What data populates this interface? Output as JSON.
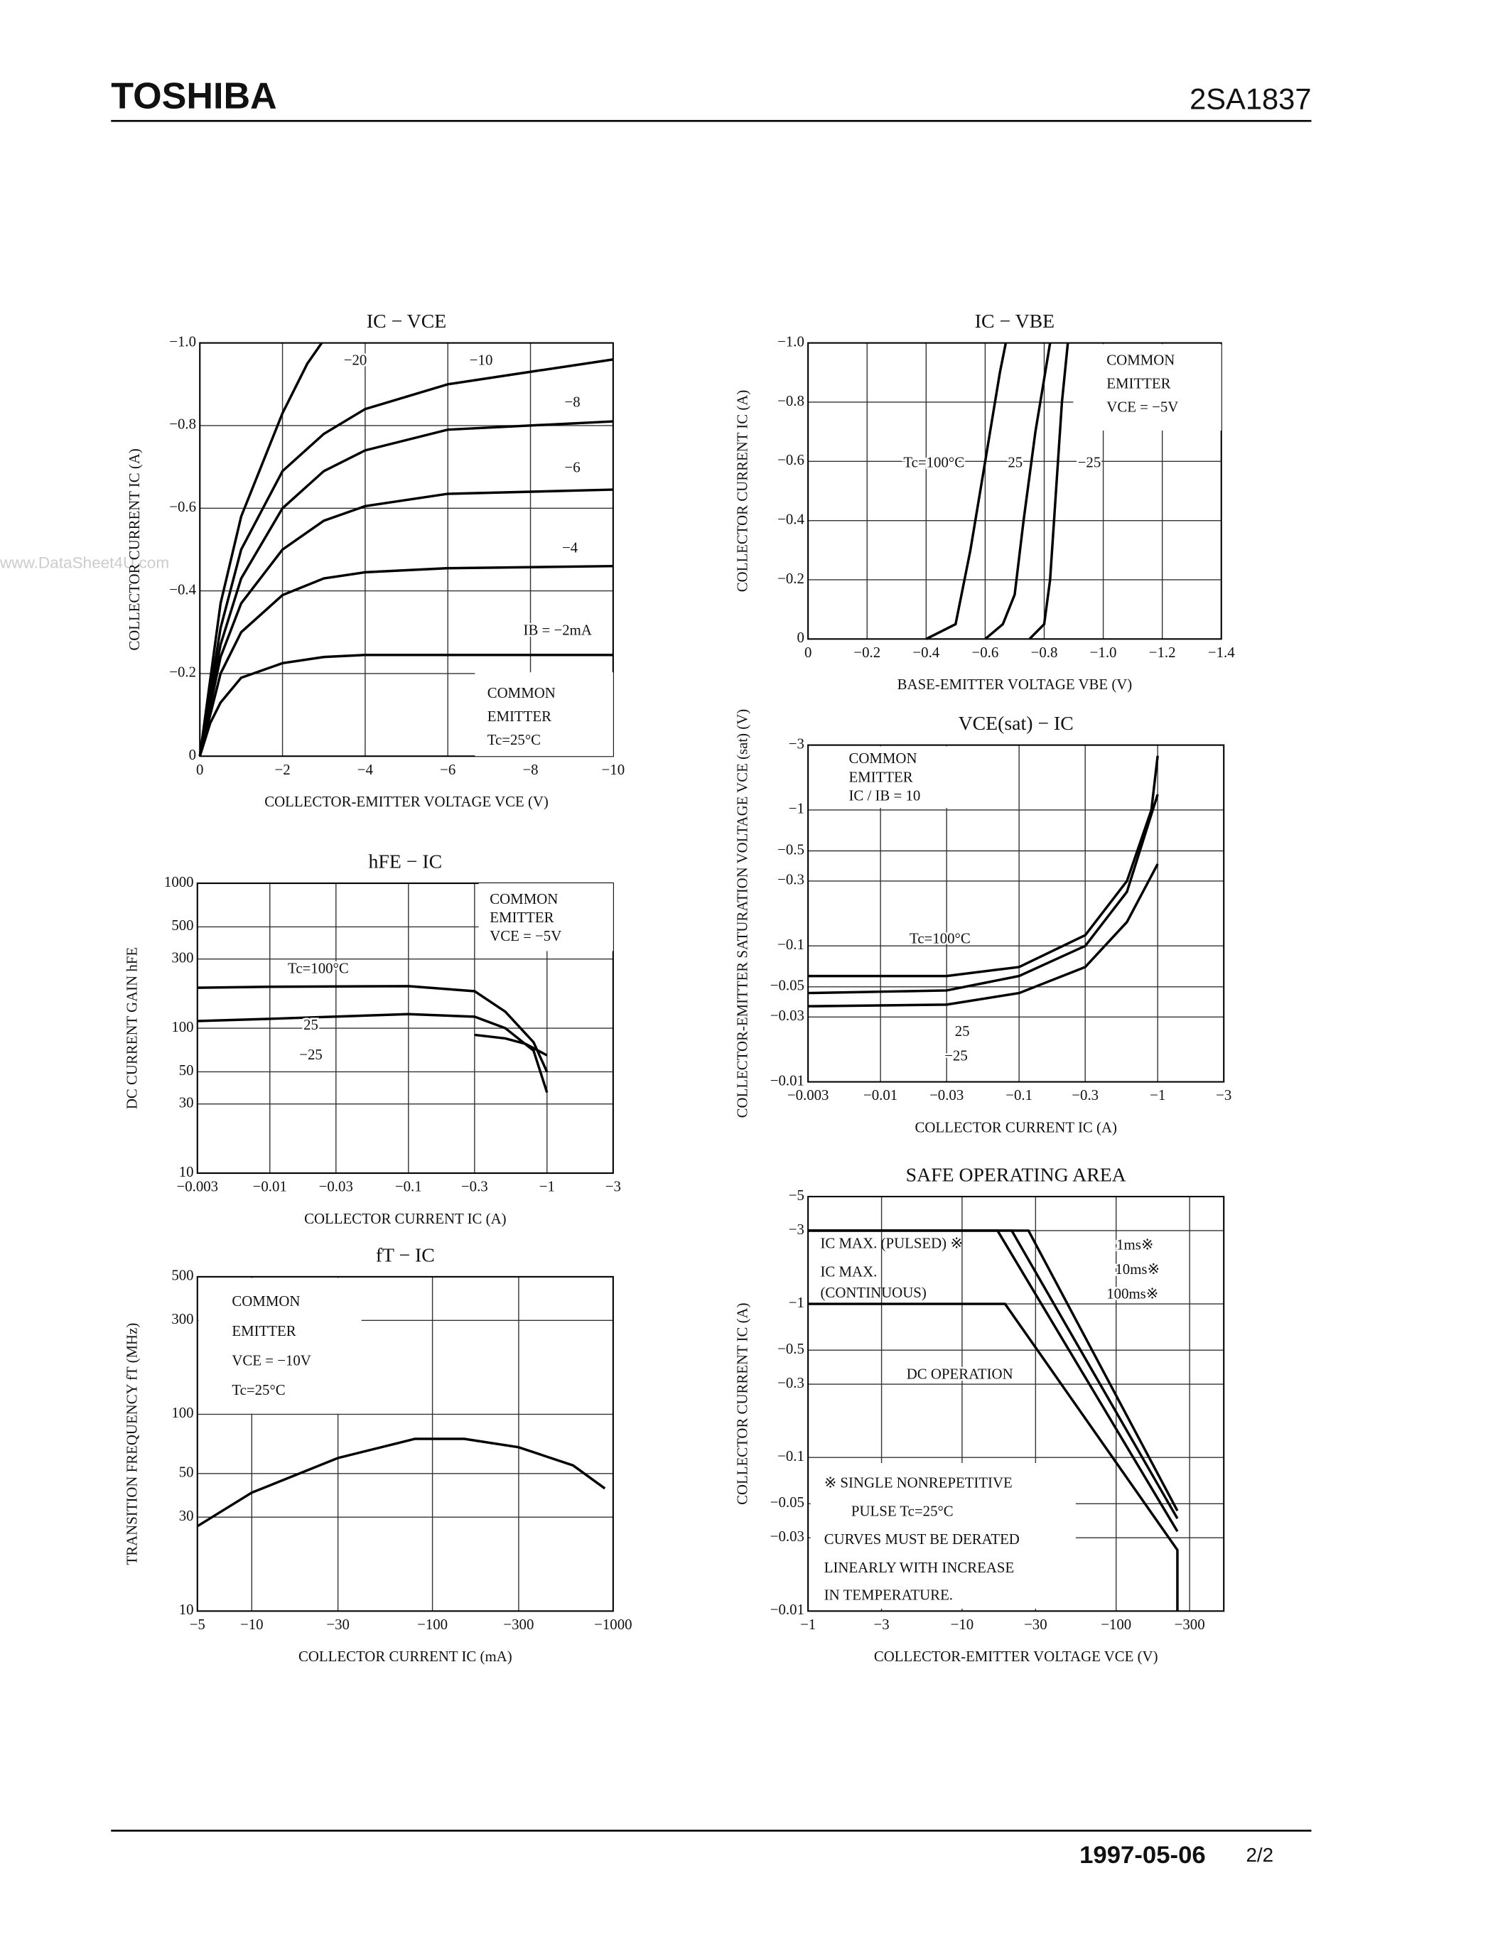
{
  "header": {
    "brand": "TOSHIBA",
    "part": "2SA1837"
  },
  "footer": {
    "date": "1997-05-06",
    "page": "2/2"
  },
  "watermark": "www.DataSheet4U.com",
  "chart_data": [
    {
      "type": "line",
      "title": "IC − VCE",
      "xlabel": "COLLECTOR-EMITTER VOLTAGE  VCE  (V)",
      "ylabel": "COLLECTOR CURRENT  IC  (A)",
      "grid": true,
      "color": "#000000",
      "xlim": [
        0,
        -10
      ],
      "ylim": [
        0,
        -1.0
      ],
      "xticks": [
        0,
        {
          "value": -2,
          "label": "−2"
        },
        {
          "value": -4,
          "label": "−4"
        },
        {
          "value": -6,
          "label": "−6"
        },
        {
          "value": -8,
          "label": "−8"
        },
        {
          "value": -10,
          "label": "−10"
        }
      ],
      "yticks": [
        0,
        {
          "value": -0.2,
          "label": "−0.2"
        },
        {
          "value": -0.4,
          "label": "−0.4"
        },
        {
          "value": -0.6,
          "label": "−0.6"
        },
        {
          "value": -0.8,
          "label": "−0.8"
        },
        {
          "value": -1.0,
          "label": "−1.0"
        }
      ],
      "series": [
        {
          "name": "−20",
          "x": [
            0,
            -0.5,
            -1,
            -2,
            -2.6,
            -2.95
          ],
          "values": [
            0,
            -0.37,
            -0.58,
            -0.83,
            -0.95,
            -1.0
          ]
        },
        {
          "name": "−10",
          "x": [
            0,
            -0.5,
            -1,
            -2,
            -3,
            -4,
            -6,
            -8,
            -10
          ],
          "values": [
            0,
            -0.31,
            -0.5,
            -0.69,
            -0.78,
            -0.84,
            -0.9,
            -0.93,
            -0.96
          ]
        },
        {
          "name": "−8",
          "x": [
            0,
            -0.5,
            -1,
            -2,
            -3,
            -4,
            -6,
            -10
          ],
          "values": [
            0,
            -0.27,
            -0.43,
            -0.6,
            -0.69,
            -0.74,
            -0.79,
            -0.81
          ]
        },
        {
          "name": "−6",
          "x": [
            0,
            -0.5,
            -1,
            -2,
            -3,
            -4,
            -6,
            -10
          ],
          "values": [
            0,
            -0.24,
            -0.37,
            -0.5,
            -0.57,
            -0.605,
            -0.635,
            -0.645
          ]
        },
        {
          "name": "−4",
          "x": [
            0,
            -0.5,
            -1,
            -2,
            -3,
            -4,
            -6,
            -10
          ],
          "values": [
            0,
            -0.2,
            -0.3,
            -0.39,
            -0.43,
            -0.445,
            -0.455,
            -0.46
          ]
        },
        {
          "name": "IB = −2mA",
          "x": [
            0,
            -0.25,
            -0.5,
            -1,
            -2,
            -3,
            -4,
            -10
          ],
          "values": [
            0,
            -0.08,
            -0.13,
            -0.19,
            -0.225,
            -0.24,
            -0.245,
            -0.245
          ]
        }
      ],
      "annotations": [
        "COMMON",
        "EMITTER",
        "Tc=25°C"
      ]
    },
    {
      "type": "line",
      "title": "hFE − IC",
      "xlabel": "COLLECTOR CURRENT  IC  (A)",
      "ylabel": "DC CURRENT GAIN  hFE",
      "grid": true,
      "xlog": true,
      "ylog": true,
      "color": "#000000",
      "xlim": [
        -0.003,
        -3
      ],
      "ylim": [
        10,
        1000
      ],
      "xticks": [
        {
          "value": -0.003,
          "label": "−0.003"
        },
        {
          "value": -0.01,
          "label": "−0.01"
        },
        {
          "value": -0.03,
          "label": "−0.03"
        },
        {
          "value": -0.1,
          "label": "−0.1"
        },
        {
          "value": -0.3,
          "label": "−0.3"
        },
        {
          "value": -1,
          "label": "−1"
        },
        {
          "value": -3,
          "label": "−3"
        }
      ],
      "yticks": [
        10,
        30,
        50,
        100,
        300,
        500,
        1000
      ],
      "series": [
        {
          "name": "Tc=100°C",
          "x": [
            -0.003,
            -0.01,
            -0.1,
            -0.3,
            -0.5,
            -0.8,
            -1
          ],
          "values": [
            190,
            193,
            195,
            180,
            130,
            80,
            50
          ]
        },
        {
          "name": "25",
          "x": [
            -0.003,
            -0.01,
            -0.1,
            -0.3,
            -0.5,
            -0.8,
            -1
          ],
          "values": [
            112,
            116,
            125,
            120,
            100,
            70,
            36
          ]
        },
        {
          "name": "−25",
          "x": [
            -0.3,
            -0.5,
            -0.7,
            -1
          ],
          "values": [
            90,
            85,
            78,
            65
          ]
        }
      ],
      "annotations": [
        "COMMON",
        "EMITTER",
        "VCE = −5V"
      ]
    },
    {
      "type": "line",
      "title": "fT − IC",
      "xlabel": "COLLECTOR CURRENT  IC  (mA)",
      "ylabel": "TRANSITION FREQUENCY  fT  (MHz)",
      "grid": true,
      "xlog": true,
      "ylog": true,
      "color": "#000000",
      "xlim": [
        -5,
        -1000
      ],
      "ylim": [
        10,
        500
      ],
      "xticks": [
        {
          "value": -5,
          "label": "−5"
        },
        {
          "value": -10,
          "label": "−10"
        },
        {
          "value": -30,
          "label": "−30"
        },
        {
          "value": -100,
          "label": "−100"
        },
        {
          "value": -300,
          "label": "−300"
        },
        {
          "value": -1000,
          "label": "−1000"
        }
      ],
      "yticks": [
        10,
        30,
        50,
        100,
        300,
        500
      ],
      "x": [
        -5,
        -10,
        -30,
        -80,
        -150,
        -300,
        -600,
        -900
      ],
      "values": [
        27,
        40,
        60,
        75,
        75,
        68,
        55,
        42
      ],
      "annotations": [
        "COMMON",
        "EMITTER",
        "VCE = −10V",
        "Tc=25°C"
      ]
    },
    {
      "type": "line",
      "title": "IC − VBE",
      "xlabel": "BASE-EMITTER VOLTAGE  VBE  (V)",
      "ylabel": "COLLECTOR CURRENT  IC  (A)",
      "grid": true,
      "color": "#000000",
      "xlim": [
        0,
        -1.4
      ],
      "ylim": [
        0,
        -1.0
      ],
      "xticks": [
        0,
        {
          "value": -0.2,
          "label": "−0.2"
        },
        {
          "value": -0.4,
          "label": "−0.4"
        },
        {
          "value": -0.6,
          "label": "−0.6"
        },
        {
          "value": -0.8,
          "label": "−0.8"
        },
        {
          "value": -1.0,
          "label": "−1.0"
        },
        {
          "value": -1.2,
          "label": "−1.2"
        },
        {
          "value": -1.4,
          "label": "−1.4"
        }
      ],
      "yticks": [
        0,
        {
          "value": -0.2,
          "label": "−0.2"
        },
        {
          "value": -0.4,
          "label": "−0.4"
        },
        {
          "value": -0.6,
          "label": "−0.6"
        },
        {
          "value": -0.8,
          "label": "−0.8"
        },
        {
          "value": -1.0,
          "label": "−1.0"
        }
      ],
      "series": [
        {
          "name": "Tc=100°C",
          "x": [
            -0.4,
            -0.5,
            -0.55,
            -0.6,
            -0.65,
            -0.67
          ],
          "values": [
            0,
            -0.05,
            -0.3,
            -0.6,
            -0.9,
            -1.0
          ]
        },
        {
          "name": "25",
          "x": [
            -0.6,
            -0.66,
            -0.7,
            -0.73,
            -0.77,
            -0.82
          ],
          "values": [
            0,
            -0.05,
            -0.15,
            -0.4,
            -0.7,
            -1.0
          ]
        },
        {
          "name": "−25",
          "x": [
            -0.75,
            -0.8,
            -0.82,
            -0.84,
            -0.86,
            -0.88
          ],
          "values": [
            0,
            -0.05,
            -0.2,
            -0.5,
            -0.8,
            -1.0
          ]
        }
      ],
      "annotations": [
        "COMMON",
        "EMITTER",
        "VCE = −5V"
      ]
    },
    {
      "type": "line",
      "title": "VCE(sat) − IC",
      "xlabel": "COLLECTOR CURRENT  IC  (A)",
      "ylabel": "COLLECTOR-EMITTER SATURATION VOLTAGE  VCE (sat)  (V)",
      "grid": true,
      "xlog": true,
      "ylog": true,
      "color": "#000000",
      "xlim": [
        -0.003,
        -3
      ],
      "ylim": [
        -0.01,
        -3
      ],
      "xticks": [
        {
          "value": -0.003,
          "label": "−0.003"
        },
        {
          "value": -0.01,
          "label": "−0.01"
        },
        {
          "value": -0.03,
          "label": "−0.03"
        },
        {
          "value": -0.1,
          "label": "−0.1"
        },
        {
          "value": -0.3,
          "label": "−0.3"
        },
        {
          "value": -1,
          "label": "−1"
        },
        {
          "value": -3,
          "label": "−3"
        }
      ],
      "yticks": [
        {
          "value": -0.01,
          "label": "−0.01"
        },
        {
          "value": -0.03,
          "label": "−0.03"
        },
        {
          "value": -0.05,
          "label": "−0.05"
        },
        {
          "value": -0.1,
          "label": "−0.1"
        },
        {
          "value": -0.3,
          "label": "−0.3"
        },
        {
          "value": -0.5,
          "label": "−0.5"
        },
        {
          "value": -1,
          "label": "−1"
        },
        {
          "value": -3,
          "label": "−3"
        }
      ],
      "series": [
        {
          "name": "Tc=100°C",
          "x": [
            -0.003,
            -0.03,
            -0.1,
            -0.3,
            -0.6,
            -0.9,
            -1
          ],
          "values": [
            -0.06,
            -0.06,
            -0.07,
            -0.12,
            -0.3,
            -1,
            -2.5
          ]
        },
        {
          "name": "25",
          "x": [
            -0.003,
            -0.03,
            -0.1,
            -0.3,
            -0.6,
            -1
          ],
          "values": [
            -0.045,
            -0.047,
            -0.06,
            -0.1,
            -0.25,
            -1.3
          ]
        },
        {
          "name": "−25",
          "x": [
            -0.003,
            -0.03,
            -0.1,
            -0.3,
            -0.6,
            -1
          ],
          "values": [
            -0.036,
            -0.037,
            -0.045,
            -0.07,
            -0.15,
            -0.4
          ]
        }
      ],
      "annotations": [
        "COMMON",
        "EMITTER",
        "IC / IB = 10"
      ]
    },
    {
      "type": "line",
      "title": "SAFE OPERATING AREA",
      "xlabel": "COLLECTOR-EMITTER VOLTAGE  VCE  (V)",
      "ylabel": "COLLECTOR CURRENT  IC  (A)",
      "grid": true,
      "xlog": true,
      "ylog": true,
      "color": "#000000",
      "xlim": [
        -1,
        -500
      ],
      "ylim": [
        -0.01,
        -5
      ],
      "xticks": [
        {
          "value": -1,
          "label": "−1"
        },
        {
          "value": -3,
          "label": "−3"
        },
        {
          "value": -10,
          "label": "−10"
        },
        {
          "value": -30,
          "label": "−30"
        },
        {
          "value": -100,
          "label": "−100"
        },
        {
          "value": -300,
          "label": "−300"
        }
      ],
      "yticks": [
        {
          "value": -0.01,
          "label": "−0.01"
        },
        {
          "value": -0.03,
          "label": "−0.03"
        },
        {
          "value": -0.05,
          "label": "−0.05"
        },
        {
          "value": -0.1,
          "label": "−0.1"
        },
        {
          "value": -0.3,
          "label": "−0.3"
        },
        {
          "value": -0.5,
          "label": "−0.5"
        },
        {
          "value": -1,
          "label": "−1"
        },
        {
          "value": -3,
          "label": "−3"
        },
        {
          "value": -5,
          "label": "−5"
        }
      ],
      "series": [
        {
          "name": "1ms※",
          "x": [
            -1,
            -27,
            -250
          ],
          "values": [
            -3,
            -3,
            -0.045
          ]
        },
        {
          "name": "10ms※",
          "x": [
            -1,
            -21,
            -250
          ],
          "values": [
            -3,
            -3,
            -0.04
          ]
        },
        {
          "name": "100ms※",
          "x": [
            -1,
            -17,
            -250
          ],
          "values": [
            -3,
            -3,
            -0.033
          ]
        },
        {
          "name": "DC OPERATION",
          "x": [
            -1,
            -19,
            -250,
            -250
          ],
          "values": [
            -1,
            -1,
            -0.025,
            -0.01
          ]
        }
      ],
      "annotations": [
        "IC MAX. (PULSED) ※",
        "IC MAX.",
        "(CONTINUOUS)",
        "※  SINGLE NONREPETITIVE",
        "PULSE  Tc=25°C",
        "CURVES MUST BE DERATED",
        "LINEARLY WITH INCREASE",
        "IN TEMPERATURE."
      ]
    }
  ]
}
